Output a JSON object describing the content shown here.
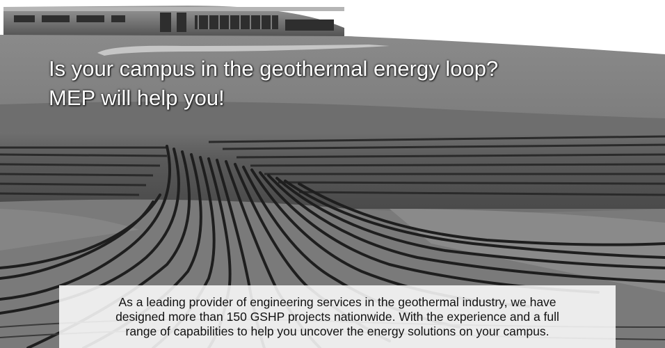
{
  "headline": {
    "line1": "Is your campus in the geothermal energy loop?",
    "line2": "MEP will help you!"
  },
  "caption": {
    "line1": "As a leading provider of engineering services in the geothermal industry, we have",
    "line2": "designed more than 150 GSHP projects nationwide. With the experience and a full",
    "line3": "range of capabilities to help you uncover the energy solutions on your campus."
  }
}
